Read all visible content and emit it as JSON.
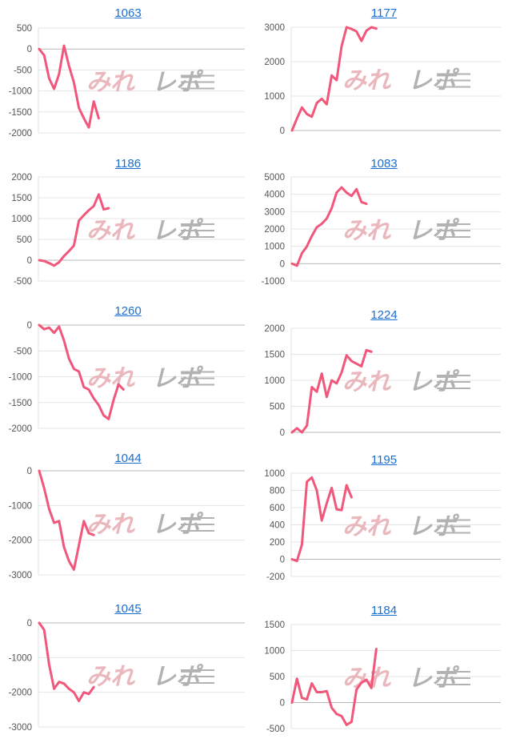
{
  "chart_data": [
    {
      "type": "line",
      "title": "1063",
      "yticks": [
        500,
        0,
        -500,
        -1000,
        -1500,
        -2000
      ],
      "ylim": [
        -2000,
        500
      ],
      "values": [
        0,
        -150,
        -700,
        -950,
        -600,
        80,
        -400,
        -800,
        -1400,
        -1650,
        -1870,
        -1250,
        -1650
      ]
    },
    {
      "type": "line",
      "title": "1177",
      "yticks": [
        3000,
        2000,
        1000,
        0
      ],
      "ylim": [
        0,
        3000
      ],
      "values": [
        0,
        350,
        670,
        480,
        400,
        800,
        920,
        760,
        1600,
        1460,
        2450,
        3000,
        2950,
        2880,
        2600,
        2900,
        3000,
        2960
      ]
    },
    {
      "type": "line",
      "title": "1186",
      "yticks": [
        2000,
        1500,
        1000,
        500,
        0,
        -500
      ],
      "ylim": [
        -500,
        2000
      ],
      "values": [
        0,
        -20,
        -70,
        -130,
        -50,
        100,
        220,
        350,
        950,
        1080,
        1200,
        1300,
        1580,
        1220,
        1250
      ]
    },
    {
      "type": "line",
      "title": "1083",
      "yticks": [
        5000,
        4000,
        3000,
        2000,
        1000,
        0,
        -1000
      ],
      "ylim": [
        -1000,
        5000
      ],
      "values": [
        0,
        -120,
        600,
        1000,
        1600,
        2100,
        2300,
        2600,
        3200,
        4100,
        4400,
        4100,
        3900,
        4300,
        3550,
        3450
      ]
    },
    {
      "type": "line",
      "title": "1260",
      "yticks": [
        0,
        -500,
        -1000,
        -1500,
        -2000
      ],
      "ylim": [
        -2000,
        0
      ],
      "values": [
        0,
        -80,
        -50,
        -150,
        -30,
        -300,
        -650,
        -850,
        -900,
        -1200,
        -1250,
        -1420,
        -1550,
        -1750,
        -1820,
        -1450,
        -1150,
        -1250
      ]
    },
    {
      "type": "line",
      "title": "1224",
      "yticks": [
        2000,
        1500,
        1000,
        500,
        0
      ],
      "ylim": [
        0,
        2000
      ],
      "values": [
        0,
        80,
        0,
        130,
        870,
        780,
        1130,
        680,
        1000,
        940,
        1150,
        1480,
        1370,
        1320,
        1270,
        1580,
        1550
      ]
    },
    {
      "type": "line",
      "title": "1044",
      "yticks": [
        0,
        -1000,
        -2000,
        -3000
      ],
      "ylim": [
        -3000,
        0
      ],
      "values": [
        0,
        -500,
        -1100,
        -1500,
        -1450,
        -2200,
        -2600,
        -2850,
        -2150,
        -1450,
        -1800,
        -1850
      ]
    },
    {
      "type": "line",
      "title": "1195",
      "yticks": [
        1000,
        800,
        600,
        400,
        200,
        0,
        -200
      ],
      "ylim": [
        -200,
        1000
      ],
      "values": [
        0,
        -20,
        170,
        900,
        950,
        800,
        450,
        650,
        830,
        580,
        570,
        860,
        720
      ]
    },
    {
      "type": "line",
      "title": "1045",
      "yticks": [
        0,
        -1000,
        -2000,
        -3000
      ],
      "ylim": [
        -3000,
        0
      ],
      "values": [
        0,
        -200,
        -1200,
        -1900,
        -1700,
        -1750,
        -1900,
        -2000,
        -2250,
        -2000,
        -2050,
        -1850
      ]
    },
    {
      "type": "line",
      "title": "1184",
      "yticks": [
        1500,
        1000,
        500,
        0,
        -500
      ],
      "ylim": [
        -500,
        1500
      ],
      "values": [
        0,
        460,
        90,
        60,
        370,
        200,
        200,
        220,
        -100,
        -220,
        -260,
        -430,
        -370,
        250,
        380,
        440,
        280,
        1030
      ]
    }
  ],
  "colors": {
    "line": "#f0577a",
    "title": "#1a6fd0",
    "grid": "#e4e4e4",
    "tick": "#555555",
    "wm_pink": "#eab7bd",
    "wm_gray": "#b2b2b2"
  },
  "watermark": {
    "left": "みれ",
    "right": "レポ"
  }
}
